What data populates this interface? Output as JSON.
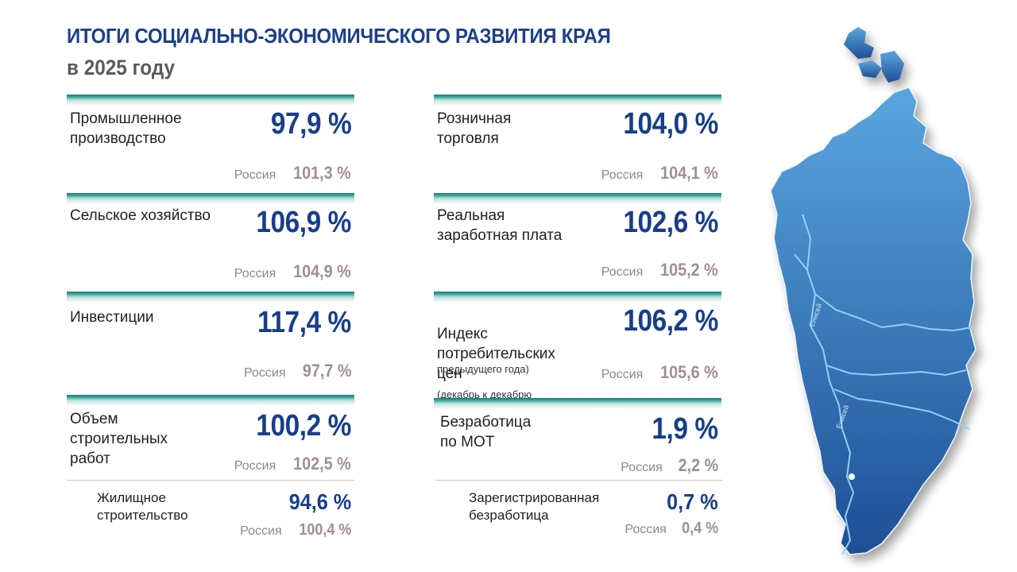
{
  "header": {
    "title": "ИТОГИ СОЦИАЛЬНО-ЭКОНОМИЧЕСКОГО РАЗВИТИЯ КРАЯ",
    "subtitle": "в 2025 году"
  },
  "ru_label": "Россия",
  "indicators": [
    {
      "label": "Промышленное\nпроизводство",
      "value": "97,9 %",
      "russia": "101,3 %"
    },
    {
      "label": "Сельское хозяйство",
      "value": "106,9 %",
      "russia": "104,9 %"
    },
    {
      "label": "Инвестиции",
      "value": "117,4 %",
      "russia": "97,7 %"
    },
    {
      "label": "Объем\nстроительных\nработ",
      "value": "100,2 %",
      "russia": "102,5 %"
    },
    {
      "label": "Розничная\nторговля",
      "value": "104,0 %",
      "russia": "104,1 %"
    },
    {
      "label": "Реальная\nзаработная плата",
      "value": "102,6 %",
      "russia": "105,2 %"
    },
    {
      "label": "Индекс\nпотребительских\nцен",
      "note": "(декабрь к декабрю",
      "note2": "предыдущего года)",
      "value": "106,2 %",
      "russia": "105,6 %"
    },
    {
      "label": "Безработица\nпо МОТ",
      "value": "1,9 %",
      "russia": "2,2 %"
    }
  ],
  "sub_indicators": [
    {
      "label": "Жилищное\nстроительство",
      "value": "94,6 %",
      "russia": "100,4 %"
    },
    {
      "label": "Зарегистрированная\nбезработица",
      "value": "0,7 %",
      "russia": "0,4 %"
    }
  ],
  "map": {
    "river_label_1": "Енисей",
    "river_label_2": "Енисей",
    "fill_top": "#5aa6df",
    "fill_bottom": "#1e4f96",
    "river_color": "#8fd0f5"
  },
  "colors": {
    "title": "#1c3f8a",
    "value": "#173e8c",
    "russia_value": "#a08e94",
    "accent_bar": "#0f7f7a"
  }
}
